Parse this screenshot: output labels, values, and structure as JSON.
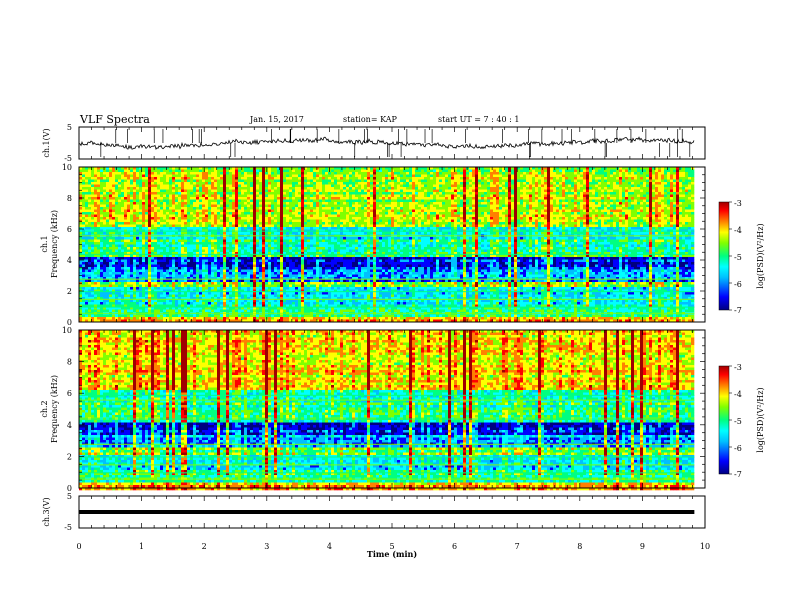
{
  "header": {
    "title": "VLF Spectra",
    "date": "Jan. 15, 2017",
    "station": "station= KAP",
    "start": "start UT = 7 : 40 : 1"
  },
  "chart_data": [
    {
      "type": "line",
      "panel": "ch1-waveform",
      "ylabel": "ch.1(V)",
      "ylim": [
        -5,
        5
      ],
      "yticks": [
        "5",
        "-5"
      ],
      "x_range_min": [
        0,
        9.83
      ],
      "description_values": {
        "typical_level_V": 0,
        "spike_max_V": 5,
        "spike_min_V": -5
      }
    },
    {
      "type": "heatmap",
      "panel": "ch1-spectrogram",
      "ylabel": "ch.1\nFrequency (kHz)",
      "ylim": [
        0,
        10
      ],
      "yticks": [
        "0",
        "2",
        "4",
        "6",
        "8",
        "10"
      ],
      "xlim": [
        0,
        10
      ],
      "data_xmax": 9.83,
      "colorbar": {
        "label": "log(PSD)(V²/Hz)",
        "range": [
          -7,
          -3
        ],
        "ticks": [
          "-3",
          "-4",
          "-5",
          "-6",
          "-7"
        ]
      }
    },
    {
      "type": "heatmap",
      "panel": "ch2-spectrogram",
      "ylabel": "ch.2\nFrequency (kHz)",
      "ylim": [
        0,
        10
      ],
      "yticks": [
        "0",
        "2",
        "4",
        "6",
        "8",
        "10"
      ],
      "xlim": [
        0,
        10
      ],
      "data_xmax": 9.83,
      "colorbar": {
        "label": "log(PSD)(V²/Hz)",
        "range": [
          -7,
          -3
        ],
        "ticks": [
          "-3",
          "-4",
          "-5",
          "-6",
          "-7"
        ]
      }
    },
    {
      "type": "line",
      "panel": "ch3-waveform",
      "ylabel": "ch.3(V)",
      "ylim": [
        -5,
        5
      ],
      "yticks": [
        "5",
        "-5"
      ],
      "x_range_min": [
        0,
        9.83
      ],
      "constant_value_V": 0
    }
  ],
  "xaxis": {
    "label": "Time (min)",
    "ticks": [
      "0",
      "1",
      "2",
      "3",
      "4",
      "5",
      "6",
      "7",
      "8",
      "9",
      "10"
    ]
  },
  "colors": {
    "cmap": [
      "#000080",
      "#0000ff",
      "#00bfff",
      "#00ffff",
      "#00ff80",
      "#80ff00",
      "#ffff00",
      "#ff8000",
      "#ff0000",
      "#a00000"
    ]
  }
}
